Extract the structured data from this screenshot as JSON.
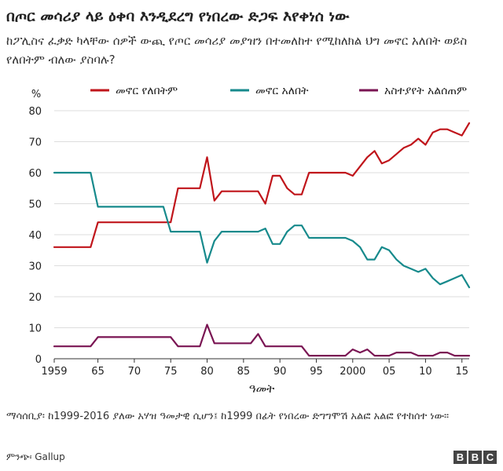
{
  "header": {
    "title": "በጦር መሳሪያ ላይ ዕቀባ እንዲደረግ የነበረው ድጋፍ እየቀነሰ ነው",
    "subtitle": "ከፖሊስና ፈቃድ ካላቸው ሰዎች ውጪ የጦር መሳሪያ መያዝን በተመለከተ የሚከለክል ህግ መኖር አለበት ወይስ የለበትም ብለው ያስባሉ?"
  },
  "footer": {
    "note": "ማሳሰቢያ፡ ከ1999-2016 ያለው አሃዝ ዓመታዊ ሲሆን፤ ከ1999 በፊት የነበረው ድግግሞሽ አልፎ አልፎ የተከሰተ ነው።",
    "source": "ምንጭ፡ Gallup",
    "logo_letters": [
      "B",
      "B",
      "C"
    ]
  },
  "chart_data": {
    "type": "line",
    "title": "በጦር መሳሪያ ላይ ዕቀባ እንዲደረግ የነበረው ድጋፍ እየቀነሰ ነው",
    "ylabel": "%",
    "xlabel": "ዓመት",
    "xlim": [
      1959,
      2016
    ],
    "ylim": [
      0,
      80
    ],
    "yticks": [
      0,
      10,
      20,
      30,
      40,
      50,
      60,
      70,
      80
    ],
    "xticks": [
      {
        "value": 1959,
        "label": "1959"
      },
      {
        "value": 1965,
        "label": "65"
      },
      {
        "value": 1970,
        "label": "70"
      },
      {
        "value": 1975,
        "label": "75"
      },
      {
        "value": 1980,
        "label": "80"
      },
      {
        "value": 1985,
        "label": "85"
      },
      {
        "value": 1990,
        "label": "90"
      },
      {
        "value": 1995,
        "label": "95"
      },
      {
        "value": 2000,
        "label": "2000"
      },
      {
        "value": 2005,
        "label": "05"
      },
      {
        "value": 2010,
        "label": "10"
      },
      {
        "value": 2015,
        "label": "15"
      }
    ],
    "grid": true,
    "legend_position": "top",
    "series": [
      {
        "name": "መኖር የለበትም",
        "color": "#c0151b",
        "points": [
          [
            1959,
            36
          ],
          [
            1964,
            36
          ],
          [
            1965,
            44
          ],
          [
            1975,
            44
          ],
          [
            1976,
            55
          ],
          [
            1979,
            55
          ],
          [
            1980,
            65
          ],
          [
            1981,
            51
          ],
          [
            1982,
            54
          ],
          [
            1987,
            54
          ],
          [
            1988,
            50
          ],
          [
            1989,
            59
          ],
          [
            1990,
            59
          ],
          [
            1991,
            55
          ],
          [
            1992,
            53
          ],
          [
            1993,
            53
          ],
          [
            1994,
            60
          ],
          [
            1999,
            60
          ],
          [
            2000,
            59
          ],
          [
            2001,
            62
          ],
          [
            2002,
            65
          ],
          [
            2003,
            67
          ],
          [
            2004,
            63
          ],
          [
            2005,
            64
          ],
          [
            2006,
            66
          ],
          [
            2007,
            68
          ],
          [
            2008,
            69
          ],
          [
            2009,
            71
          ],
          [
            2010,
            69
          ],
          [
            2011,
            73
          ],
          [
            2012,
            74
          ],
          [
            2013,
            74
          ],
          [
            2014,
            73
          ],
          [
            2015,
            72
          ],
          [
            2016,
            76
          ]
        ]
      },
      {
        "name": "መኖር አለበት",
        "color": "#178a8c",
        "points": [
          [
            1959,
            60
          ],
          [
            1964,
            60
          ],
          [
            1965,
            49
          ],
          [
            1974,
            49
          ],
          [
            1975,
            41
          ],
          [
            1979,
            41
          ],
          [
            1980,
            31
          ],
          [
            1981,
            38
          ],
          [
            1982,
            41
          ],
          [
            1987,
            41
          ],
          [
            1988,
            42
          ],
          [
            1989,
            37
          ],
          [
            1990,
            37
          ],
          [
            1991,
            41
          ],
          [
            1992,
            43
          ],
          [
            1993,
            43
          ],
          [
            1994,
            39
          ],
          [
            1999,
            39
          ],
          [
            2000,
            38
          ],
          [
            2001,
            36
          ],
          [
            2002,
            32
          ],
          [
            2003,
            32
          ],
          [
            2004,
            36
          ],
          [
            2005,
            35
          ],
          [
            2006,
            32
          ],
          [
            2007,
            30
          ],
          [
            2008,
            29
          ],
          [
            2009,
            28
          ],
          [
            2010,
            29
          ],
          [
            2011,
            26
          ],
          [
            2012,
            24
          ],
          [
            2013,
            25
          ],
          [
            2014,
            26
          ],
          [
            2015,
            27
          ],
          [
            2016,
            23
          ]
        ]
      },
      {
        "name": "አስተያየት አልሰጠም",
        "color": "#7a1553",
        "points": [
          [
            1959,
            4
          ],
          [
            1964,
            4
          ],
          [
            1965,
            7
          ],
          [
            1975,
            7
          ],
          [
            1976,
            4
          ],
          [
            1979,
            4
          ],
          [
            1980,
            11
          ],
          [
            1981,
            5
          ],
          [
            1986,
            5
          ],
          [
            1987,
            8
          ],
          [
            1988,
            4
          ],
          [
            1993,
            4
          ],
          [
            1994,
            1
          ],
          [
            1999,
            1
          ],
          [
            2000,
            3
          ],
          [
            2001,
            2
          ],
          [
            2002,
            3
          ],
          [
            2003,
            1
          ],
          [
            2005,
            1
          ],
          [
            2006,
            2
          ],
          [
            2008,
            2
          ],
          [
            2009,
            1
          ],
          [
            2011,
            1
          ],
          [
            2012,
            2
          ],
          [
            2013,
            2
          ],
          [
            2014,
            1
          ],
          [
            2016,
            1
          ]
        ]
      }
    ]
  }
}
